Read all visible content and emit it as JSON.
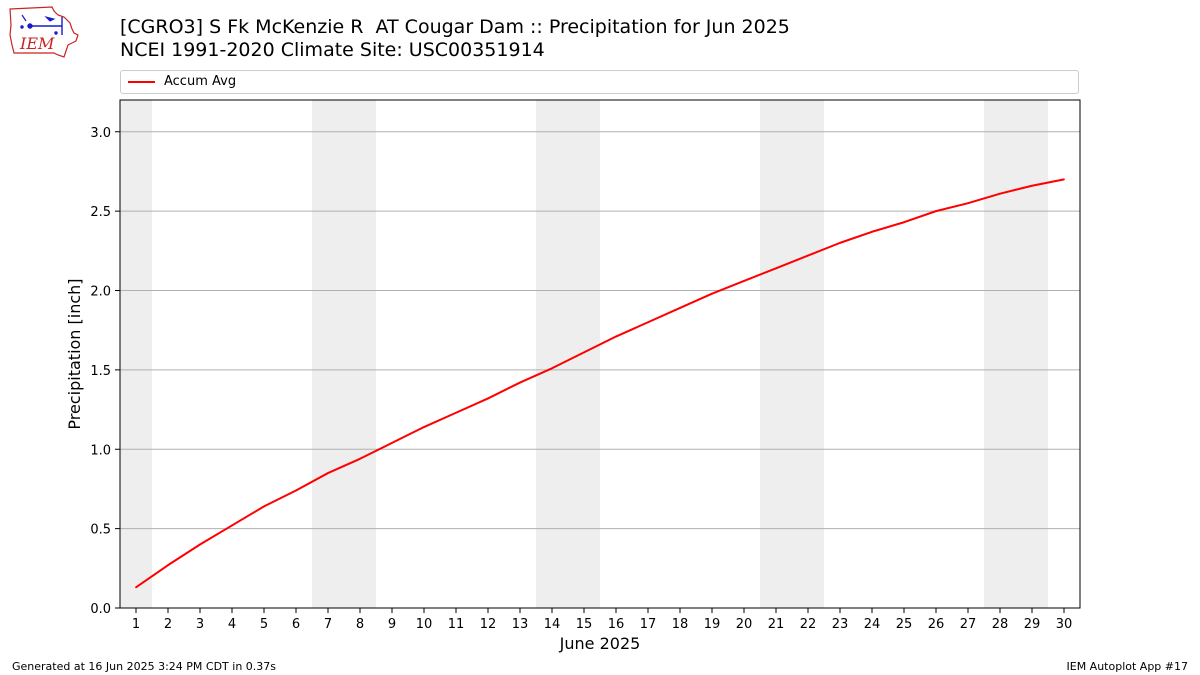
{
  "header": {
    "title_line1": "[CGRO3] S Fk McKenzie R  AT Cougar Dam :: Precipitation for Jun 2025",
    "title_line2": "NCEI 1991-2020 Climate Site: USC00351914",
    "logo_text": "IEM"
  },
  "footer": {
    "generated": "Generated at 16 Jun 2025 3:24 PM CDT in 0.37s",
    "app": "IEM Autoplot App #17"
  },
  "colors": {
    "series": "#ff0000",
    "weekend_band": "#eeeeee",
    "grid": "#b0b0b0",
    "logo": "#cc2222"
  },
  "chart_data": {
    "type": "line",
    "title": "[CGRO3] S Fk McKenzie R  AT Cougar Dam :: Precipitation for Jun 2025",
    "xlabel": "June 2025",
    "ylabel": "Precipitation [inch]",
    "xlim": [
      0.5,
      30.5
    ],
    "ylim": [
      0.0,
      3.2
    ],
    "grid": "horizontal",
    "legend_position": "top",
    "x_ticks": [
      1,
      2,
      3,
      4,
      5,
      6,
      7,
      8,
      9,
      10,
      11,
      12,
      13,
      14,
      15,
      16,
      17,
      18,
      19,
      20,
      21,
      22,
      23,
      24,
      25,
      26,
      27,
      28,
      29,
      30
    ],
    "y_ticks": [
      0.0,
      0.5,
      1.0,
      1.5,
      2.0,
      2.5,
      3.0
    ],
    "y_tick_labels": [
      "0.0",
      "0.5",
      "1.0",
      "1.5",
      "2.0",
      "2.5",
      "3.0"
    ],
    "shaded_days": [
      1,
      7,
      8,
      14,
      15,
      21,
      22,
      28,
      29
    ],
    "series": [
      {
        "name": "Accum Avg",
        "color": "#ff0000",
        "x": [
          1,
          2,
          3,
          4,
          5,
          6,
          7,
          8,
          9,
          10,
          11,
          12,
          13,
          14,
          15,
          16,
          17,
          18,
          19,
          20,
          21,
          22,
          23,
          24,
          25,
          26,
          27,
          28,
          29,
          30
        ],
        "values": [
          0.13,
          0.27,
          0.4,
          0.52,
          0.64,
          0.74,
          0.85,
          0.94,
          1.04,
          1.14,
          1.23,
          1.32,
          1.42,
          1.51,
          1.61,
          1.71,
          1.8,
          1.89,
          1.98,
          2.06,
          2.14,
          2.22,
          2.3,
          2.37,
          2.43,
          2.5,
          2.55,
          2.61,
          2.66,
          2.7
        ]
      }
    ]
  }
}
